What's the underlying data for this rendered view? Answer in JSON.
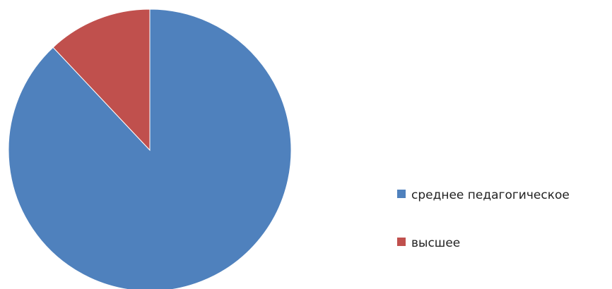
{
  "chart_data": {
    "type": "pie",
    "categories": [
      "среднее педагогическое",
      "высшее"
    ],
    "values": [
      88,
      12
    ],
    "colors": [
      "#4F81BD",
      "#C0504D"
    ],
    "start": "12 o'clock",
    "direction": "clockwise",
    "legend": {
      "placement": "right",
      "entries": [
        "среднее педагогическое",
        "высшее"
      ]
    }
  }
}
